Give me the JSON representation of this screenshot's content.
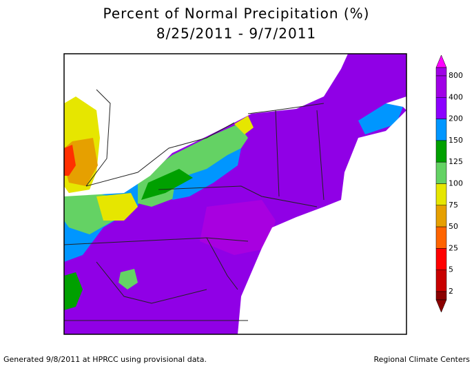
{
  "title": "Percent of Normal Precipitation (%)",
  "subtitle": "8/25/2011 - 9/7/2011",
  "legend": {
    "labels": [
      "800",
      "400",
      "200",
      "150",
      "125",
      "100",
      "75",
      "50",
      "25",
      "5",
      "2"
    ],
    "colors": [
      "#ff00ff",
      "#a000e6",
      "#8c00ff",
      "#0096ff",
      "#00a000",
      "#64d264",
      "#e6e600",
      "#e6a000",
      "#ff6400",
      "#ff0000",
      "#c80000",
      "#8b0000"
    ]
  },
  "footer": {
    "left": "Generated 9/8/2011 at HPRCC using provisional data.",
    "right": "Regional Climate Centers"
  }
}
